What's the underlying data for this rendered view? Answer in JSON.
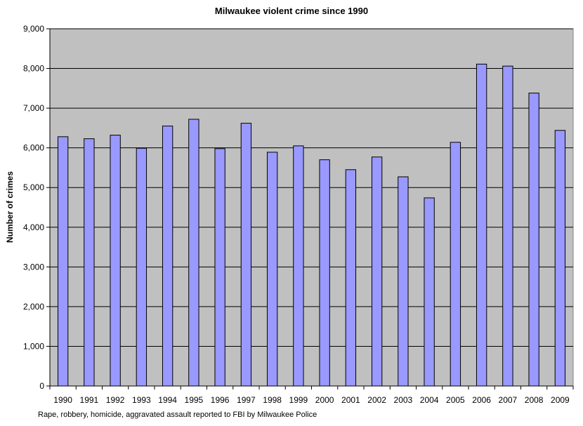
{
  "chart_data": {
    "type": "bar",
    "title": "Milwaukee violent crime since 1990",
    "xlabel": "",
    "ylabel": "Number of crimes",
    "categories": [
      "1990",
      "1991",
      "1992",
      "1993",
      "1994",
      "1995",
      "1996",
      "1997",
      "1998",
      "1999",
      "2000",
      "2001",
      "2002",
      "2003",
      "2004",
      "2005",
      "2006",
      "2007",
      "2008",
      "2009"
    ],
    "values": [
      6280,
      6230,
      6320,
      5990,
      6550,
      6720,
      5980,
      6620,
      5890,
      6050,
      5700,
      5450,
      5770,
      5270,
      4740,
      6140,
      8110,
      8060,
      7380,
      6440
    ],
    "ylim": [
      0,
      9000
    ],
    "yticks": [
      0,
      1000,
      2000,
      3000,
      4000,
      5000,
      6000,
      7000,
      8000,
      9000
    ],
    "ytick_labels": [
      "0",
      "1,000",
      "2,000",
      "3,000",
      "4,000",
      "5,000",
      "6,000",
      "7,000",
      "8,000",
      "9,000"
    ],
    "grid": true,
    "legend": "none",
    "colors": {
      "bar": "#9999ff",
      "plot_bg": "#c0c0c0",
      "grid": "#000000"
    },
    "footnote": "Rape, robbery, homicide, aggravated assault reported to FBI by Milwaukee Police"
  }
}
